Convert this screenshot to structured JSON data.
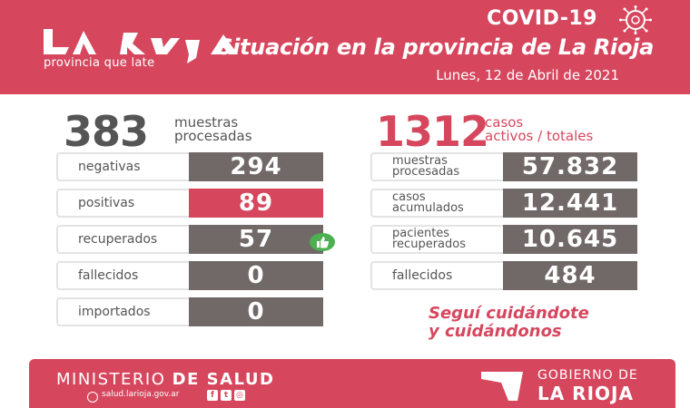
{
  "header": {
    "logo_tagline": "provincia que late",
    "covid_title": "COVID-19",
    "headline": "Situación en la provincia de La Rioja",
    "date": "Lunes, 12 de Abril de 2021"
  },
  "left": {
    "total": "383",
    "total_label_1": "muestras",
    "total_label_2": "procesadas",
    "rows": [
      {
        "label": "negativas",
        "value": "294"
      },
      {
        "label": "positivas",
        "value": "89"
      },
      {
        "label": "recuperados",
        "value": "57"
      },
      {
        "label": "fallecidos",
        "value": "0"
      },
      {
        "label": "importados",
        "value": "0"
      }
    ]
  },
  "right": {
    "total": "1312",
    "total_label_1": "casos",
    "total_label_2": "activos / totales",
    "rows": [
      {
        "label_1": "muestras",
        "label_2": "procesadas",
        "value": "57.832"
      },
      {
        "label_1": "casos",
        "label_2": "acumulados",
        "value": "12.441"
      },
      {
        "label_1": "pacientes",
        "label_2": "recuperados",
        "value": "10.645"
      },
      {
        "label": "fallecidos",
        "value": "484"
      }
    ]
  },
  "slogan": {
    "line_1": "Seguí cuidándote",
    "line_2": "y cuidándonos"
  },
  "footer": {
    "ministry_1": "MINISTERIO",
    "ministry_2": "DE SALUD",
    "website": "salud.larioja.gov.ar",
    "gov_1": "GOBIERNO DE",
    "gov_2": "LA RIOJA",
    "social_icons": [
      "facebook-icon",
      "twitter-icon",
      "instagram-icon"
    ]
  },
  "colors": {
    "brand": "#d6475e",
    "value_bg": "#716868",
    "text": "#555555"
  },
  "icons": [
    "la-rioja-logo",
    "virus-icon",
    "thumbs-up-icon",
    "globe-icon",
    "gobierno-logo-icon"
  ]
}
